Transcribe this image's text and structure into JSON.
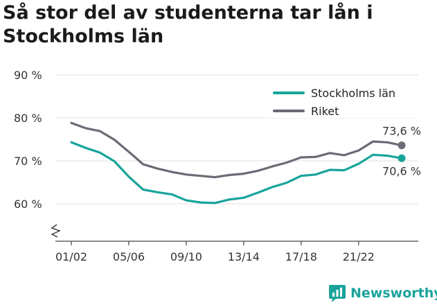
{
  "title": "Så stor del av studenterna tar lån i Stockholms län",
  "brand": {
    "name": "Newsworthy",
    "icon": "newsworthy-logo-icon"
  },
  "colors": {
    "stockholm": "#17a49b",
    "riket": "#6b6b75",
    "axis": "#444444",
    "grid": "#e2e2e2"
  },
  "chart_data": {
    "type": "line",
    "title": "Så stor del av studenterna tar lån i Stockholms län",
    "xlabel": "",
    "ylabel": "",
    "ylim": [
      50,
      91
    ],
    "y_broken_axis": true,
    "yticks": [
      60,
      70,
      80,
      90
    ],
    "ytick_labels": [
      "60 %",
      "70 %",
      "80 %",
      "90 %"
    ],
    "x": [
      "01/02",
      "02/03",
      "03/04",
      "04/05",
      "05/06",
      "06/07",
      "07/08",
      "08/09",
      "09/10",
      "10/11",
      "11/12",
      "12/13",
      "13/14",
      "14/15",
      "15/16",
      "16/17",
      "17/18",
      "18/19",
      "19/20",
      "20/21",
      "21/22",
      "22/23",
      "23/24",
      "24/25"
    ],
    "xtick_labels": [
      "01/02",
      "05/06",
      "09/10",
      "13/14",
      "17/18",
      "21/22"
    ],
    "xtick_values": [
      "01/02",
      "05/06",
      "09/10",
      "13/14",
      "17/18",
      "21/22"
    ],
    "grid": true,
    "legend_position": "top-right",
    "series": [
      {
        "name": "Stockholms län",
        "color": "#17a49b",
        "values": [
          74.3,
          73.0,
          71.9,
          69.9,
          66.3,
          63.3,
          62.7,
          62.2,
          60.8,
          60.3,
          60.2,
          61.0,
          61.4,
          62.6,
          63.9,
          64.9,
          66.5,
          66.8,
          67.9,
          67.8,
          69.3,
          71.4,
          71.2,
          70.6
        ],
        "end_label": "70,6 %"
      },
      {
        "name": "Riket",
        "color": "#6b6b75",
        "values": [
          78.8,
          77.6,
          76.9,
          74.9,
          72.1,
          69.2,
          68.2,
          67.4,
          66.8,
          66.5,
          66.2,
          66.7,
          67.0,
          67.7,
          68.7,
          69.6,
          70.8,
          70.9,
          71.8,
          71.3,
          72.4,
          74.5,
          74.3,
          73.6
        ],
        "end_label": "73,6 %"
      }
    ]
  }
}
